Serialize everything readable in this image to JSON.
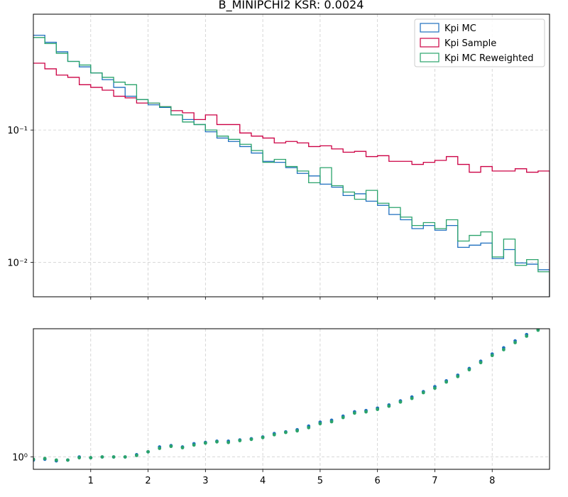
{
  "title": "B_MINIPCHI2   KSR: 0.0024",
  "colors": {
    "mc": "#1f6fbf",
    "sample": "#cc0044",
    "reweighted": "#2aa36b"
  },
  "chart_data": [
    {
      "type": "line",
      "drawstyle": "steps-post",
      "yscale": "log",
      "xlim": [
        0,
        9
      ],
      "ylim": [
        0.0055,
        0.75
      ],
      "x_ticks": [
        1,
        2,
        3,
        4,
        5,
        6,
        7,
        8
      ],
      "y_ticks": [
        {
          "value": 0.1,
          "label": "10⁻¹"
        },
        {
          "value": 0.01,
          "label": "10⁻²"
        }
      ],
      "grid": true,
      "legend_position": "top-right",
      "bin_edges": [
        0,
        0.2,
        0.4,
        0.6,
        0.8,
        1.0,
        1.2,
        1.4,
        1.6,
        1.8,
        2.0,
        2.2,
        2.4,
        2.6,
        2.8,
        3.0,
        3.2,
        3.4,
        3.6,
        3.8,
        4.0,
        4.2,
        4.4,
        4.6,
        4.8,
        5.0,
        5.2,
        5.4,
        5.6,
        5.8,
        6.0,
        6.2,
        6.4,
        6.6,
        6.8,
        7.0,
        7.2,
        7.4,
        7.6,
        7.8,
        8.0,
        8.2,
        8.4,
        8.6,
        8.8,
        9.0
      ],
      "series": [
        {
          "name": "Kpi MC",
          "color_key": "mc",
          "values": [
            0.52,
            0.46,
            0.39,
            0.33,
            0.3,
            0.27,
            0.24,
            0.21,
            0.18,
            0.17,
            0.155,
            0.148,
            0.13,
            0.12,
            0.11,
            0.097,
            0.087,
            0.082,
            0.075,
            0.067,
            0.058,
            0.057,
            0.052,
            0.047,
            0.045,
            0.039,
            0.037,
            0.032,
            0.033,
            0.029,
            0.027,
            0.023,
            0.021,
            0.018,
            0.019,
            0.0175,
            0.019,
            0.013,
            0.0135,
            0.014,
            0.0107,
            0.0125,
            0.0099,
            0.0097,
            0.0088
          ]
        },
        {
          "name": "Kpi Sample",
          "color_key": "sample",
          "values": [
            0.32,
            0.29,
            0.26,
            0.25,
            0.22,
            0.21,
            0.2,
            0.18,
            0.175,
            0.16,
            0.16,
            0.15,
            0.14,
            0.135,
            0.12,
            0.13,
            0.11,
            0.11,
            0.095,
            0.09,
            0.087,
            0.08,
            0.082,
            0.08,
            0.075,
            0.076,
            0.072,
            0.068,
            0.069,
            0.063,
            0.064,
            0.058,
            0.058,
            0.055,
            0.057,
            0.059,
            0.063,
            0.055,
            0.048,
            0.053,
            0.049,
            0.049,
            0.051,
            0.048,
            0.049
          ]
        },
        {
          "name": "Kpi MC Reweighted",
          "color_key": "reweighted",
          "values": [
            0.5,
            0.45,
            0.38,
            0.33,
            0.31,
            0.27,
            0.25,
            0.23,
            0.22,
            0.17,
            0.16,
            0.15,
            0.13,
            0.115,
            0.11,
            0.1,
            0.09,
            0.085,
            0.078,
            0.07,
            0.057,
            0.06,
            0.053,
            0.049,
            0.04,
            0.052,
            0.038,
            0.034,
            0.03,
            0.035,
            0.028,
            0.026,
            0.022,
            0.019,
            0.02,
            0.018,
            0.021,
            0.0145,
            0.016,
            0.017,
            0.011,
            0.015,
            0.0095,
            0.0105,
            0.0085
          ]
        }
      ]
    },
    {
      "type": "scatter",
      "yscale": "log",
      "xlim": [
        0,
        9
      ],
      "ylim": [
        0.85,
        5.4
      ],
      "x_ticks": [
        1,
        2,
        3,
        4,
        5,
        6,
        7,
        8
      ],
      "y_ticks": [
        {
          "value": 1.0,
          "label": "10⁰"
        }
      ],
      "grid": true,
      "x": [
        0.0,
        0.2,
        0.4,
        0.6,
        0.8,
        1.0,
        1.2,
        1.4,
        1.6,
        1.8,
        2.0,
        2.2,
        2.4,
        2.6,
        2.8,
        3.0,
        3.2,
        3.4,
        3.6,
        3.8,
        4.0,
        4.2,
        4.4,
        4.6,
        4.8,
        5.0,
        5.2,
        5.4,
        5.6,
        5.8,
        6.0,
        6.2,
        6.4,
        6.6,
        6.8,
        7.0,
        7.2,
        7.4,
        7.6,
        7.8,
        8.0,
        8.2,
        8.4,
        8.6,
        8.8
      ],
      "series": [
        {
          "color_key": "mc",
          "values": [
            0.96,
            0.97,
            0.95,
            0.96,
            1.0,
            0.99,
            1.0,
            1.0,
            1.0,
            1.03,
            1.07,
            1.14,
            1.16,
            1.14,
            1.19,
            1.21,
            1.23,
            1.23,
            1.25,
            1.27,
            1.3,
            1.36,
            1.39,
            1.43,
            1.5,
            1.58,
            1.62,
            1.71,
            1.81,
            1.84,
            1.9,
            1.98,
            2.09,
            2.2,
            2.36,
            2.52,
            2.72,
            2.93,
            3.2,
            3.52,
            3.87,
            4.2,
            4.6,
            5.0,
            5.4
          ]
        },
        {
          "color_key": "reweighted",
          "values": [
            0.97,
            0.98,
            0.96,
            0.96,
            0.99,
            0.99,
            1.0,
            1.0,
            1.0,
            1.02,
            1.07,
            1.12,
            1.15,
            1.13,
            1.17,
            1.2,
            1.22,
            1.21,
            1.24,
            1.26,
            1.29,
            1.34,
            1.38,
            1.41,
            1.47,
            1.55,
            1.59,
            1.68,
            1.78,
            1.81,
            1.87,
            1.95,
            2.06,
            2.16,
            2.33,
            2.47,
            2.68,
            2.88,
            3.15,
            3.46,
            3.8,
            4.1,
            4.5,
            4.9,
            5.3
          ]
        }
      ]
    }
  ]
}
